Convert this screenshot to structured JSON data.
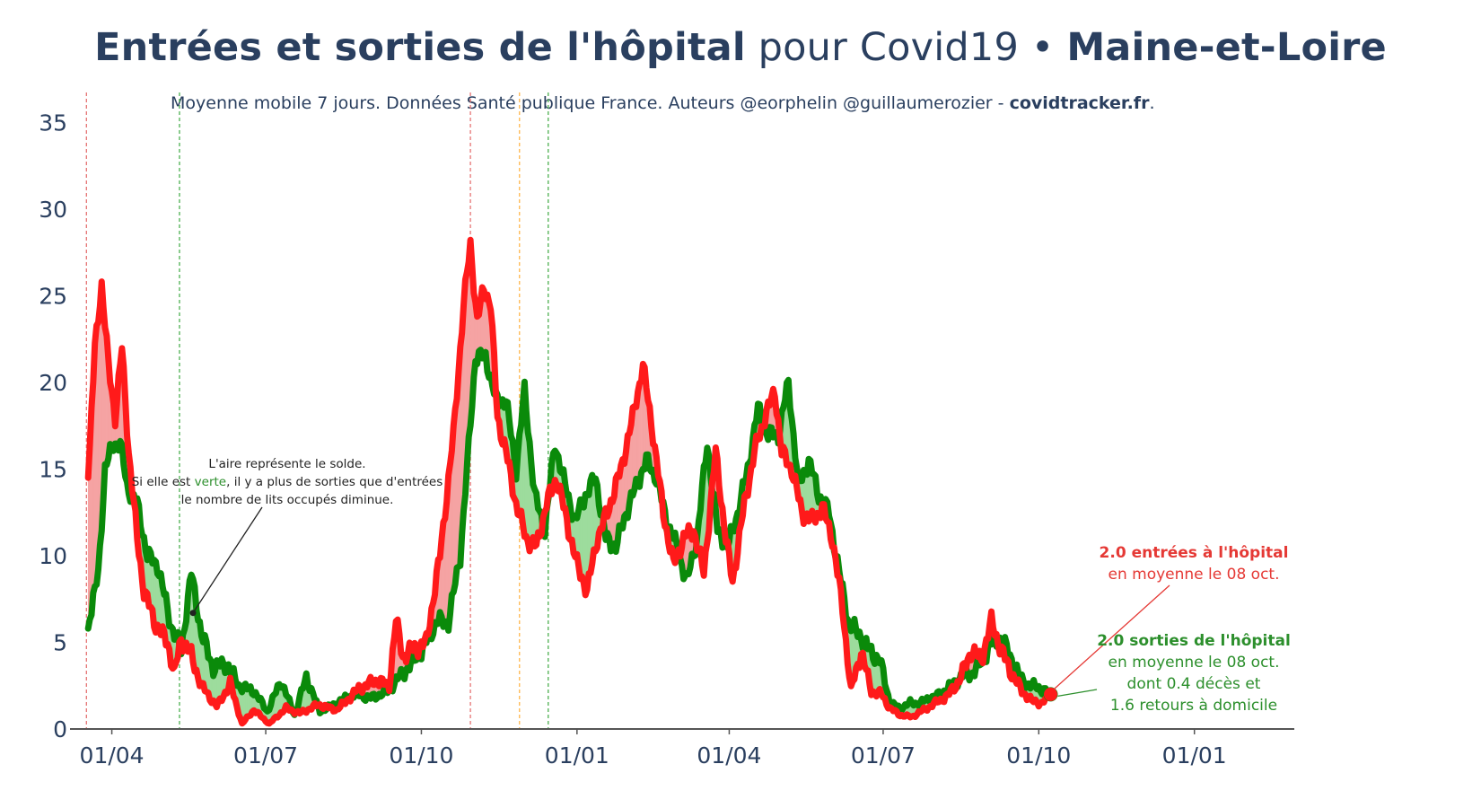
{
  "title": {
    "part1": "Entrées et sorties de l'hôpital",
    "part2": " pour Covid19 • ",
    "part3": "Maine-et-Loire"
  },
  "subtitle": {
    "text": "Moyenne mobile 7 jours. Données Santé publique France. Auteurs @eorphelin @guillaumerozier - ",
    "site": "covidtracker.fr",
    "end": "."
  },
  "note": {
    "line1": "L'aire représente le solde.",
    "line2_before": "Si elle est ",
    "line2_green": "verte",
    "line2_after": ", il y a plus de sorties que d'entrées",
    "line3": "le nombre de lits occupés diminue."
  },
  "annotation_entries": {
    "title": "2.0 entrées à l'hôpital",
    "line2": "en moyenne le 08 oct."
  },
  "annotation_exits": {
    "title": "2.0 sorties de l'hôpital",
    "line2": "en moyenne le 08 oct.",
    "line3": "dont 0.4 décès et",
    "line4": "1.6 retours à domicile"
  },
  "colors": {
    "entries": "#ff1a1a",
    "exits": "#0a8a0a",
    "fill_red": "#f5a3a3",
    "fill_green": "#9ddc9d",
    "text": "#2a3f5f"
  },
  "chart_data": {
    "type": "line",
    "x_start": "2020-03-18",
    "x_end": "2021-10-08",
    "x_tick_labels": [
      "01/04",
      "01/07",
      "01/10",
      "01/01",
      "01/04",
      "01/07",
      "01/10",
      "01/01"
    ],
    "x_tick_dates": [
      "2020-04-01",
      "2020-07-01",
      "2020-10-01",
      "2021-01-01",
      "2021-04-01",
      "2021-07-01",
      "2021-10-01",
      "2022-01-01"
    ],
    "xlim": [
      "2020-03-11",
      "2022-02-28"
    ],
    "ylim": [
      0,
      37
    ],
    "y_ticks": [
      0,
      5,
      10,
      15,
      20,
      25,
      30,
      35
    ],
    "series": [
      {
        "color": "#ff1a1a",
        "knots": [
          [
            "2020-03-18",
            14.5
          ],
          [
            "2020-03-22",
            22
          ],
          [
            "2020-03-26",
            25.7
          ],
          [
            "2020-03-30",
            21
          ],
          [
            "2020-04-03",
            18
          ],
          [
            "2020-04-07",
            22
          ],
          [
            "2020-04-11",
            16
          ],
          [
            "2020-04-16",
            11
          ],
          [
            "2020-04-20",
            8
          ],
          [
            "2020-04-27",
            6
          ],
          [
            "2020-05-04",
            5
          ],
          [
            "2020-05-08",
            3.2
          ],
          [
            "2020-05-12",
            5.2
          ],
          [
            "2020-05-17",
            4.5
          ],
          [
            "2020-05-24",
            2.5
          ],
          [
            "2020-06-02",
            1.3
          ],
          [
            "2020-06-10",
            2.6
          ],
          [
            "2020-06-17",
            0.3
          ],
          [
            "2020-06-24",
            1.1
          ],
          [
            "2020-07-03",
            0.3
          ],
          [
            "2020-07-13",
            1.2
          ],
          [
            "2020-07-21",
            0.9
          ],
          [
            "2020-08-01",
            1.4
          ],
          [
            "2020-08-12",
            1.1
          ],
          [
            "2020-08-26",
            2.4
          ],
          [
            "2020-09-05",
            2.8
          ],
          [
            "2020-09-12",
            2.5
          ],
          [
            "2020-09-16",
            6.3
          ],
          [
            "2020-09-20",
            4.2
          ],
          [
            "2020-09-28",
            4.7
          ],
          [
            "2020-10-04",
            5
          ],
          [
            "2020-10-12",
            10
          ],
          [
            "2020-10-20",
            17
          ],
          [
            "2020-10-26",
            24.5
          ],
          [
            "2020-10-30",
            28
          ],
          [
            "2020-11-03",
            23.5
          ],
          [
            "2020-11-07",
            25.5
          ],
          [
            "2020-11-11",
            24.5
          ],
          [
            "2020-11-15",
            18
          ],
          [
            "2020-11-20",
            16
          ],
          [
            "2020-11-26",
            13
          ],
          [
            "2020-12-02",
            11
          ],
          [
            "2020-12-08",
            10.5
          ],
          [
            "2020-12-14",
            13
          ],
          [
            "2020-12-20",
            14.5
          ],
          [
            "2020-12-26",
            12
          ],
          [
            "2021-01-01",
            9.5
          ],
          [
            "2021-01-07",
            8
          ],
          [
            "2021-01-13",
            11
          ],
          [
            "2021-01-19",
            12.5
          ],
          [
            "2021-01-27",
            15
          ],
          [
            "2021-02-03",
            18
          ],
          [
            "2021-02-09",
            21
          ],
          [
            "2021-02-15",
            17
          ],
          [
            "2021-02-21",
            12.5
          ],
          [
            "2021-02-27",
            9.5
          ],
          [
            "2021-03-05",
            11
          ],
          [
            "2021-03-11",
            11.5
          ],
          [
            "2021-03-17",
            9
          ],
          [
            "2021-03-24",
            16
          ],
          [
            "2021-03-30",
            11
          ],
          [
            "2021-04-03",
            8.5
          ],
          [
            "2021-04-10",
            13
          ],
          [
            "2021-04-16",
            16
          ],
          [
            "2021-04-22",
            18
          ],
          [
            "2021-04-28",
            19.5
          ],
          [
            "2021-05-02",
            16
          ],
          [
            "2021-05-08",
            15
          ],
          [
            "2021-05-14",
            12.5
          ],
          [
            "2021-05-20",
            12
          ],
          [
            "2021-05-26",
            12.8
          ],
          [
            "2021-06-01",
            11
          ],
          [
            "2021-06-07",
            7
          ],
          [
            "2021-06-12",
            2.2
          ],
          [
            "2021-06-18",
            4.5
          ],
          [
            "2021-06-24",
            2.2
          ],
          [
            "2021-06-30",
            2
          ],
          [
            "2021-07-05",
            1.2
          ],
          [
            "2021-07-11",
            0.8
          ],
          [
            "2021-07-18",
            0.7
          ],
          [
            "2021-07-25",
            1.1
          ],
          [
            "2021-08-01",
            1.5
          ],
          [
            "2021-08-08",
            1.9
          ],
          [
            "2021-08-15",
            2.8
          ],
          [
            "2021-08-22",
            4.5
          ],
          [
            "2021-08-28",
            4
          ],
          [
            "2021-09-03",
            6.2
          ],
          [
            "2021-09-09",
            4.5
          ],
          [
            "2021-09-15",
            3.2
          ],
          [
            "2021-09-21",
            2.2
          ],
          [
            "2021-09-27",
            1.6
          ],
          [
            "2021-10-03",
            1.5
          ],
          [
            "2021-10-08",
            2.0
          ]
        ]
      },
      {
        "color": "#0a8a0a",
        "knots": [
          [
            "2020-03-18",
            5.8
          ],
          [
            "2020-03-24",
            9
          ],
          [
            "2020-03-28",
            15
          ],
          [
            "2020-04-02",
            16.5
          ],
          [
            "2020-04-06",
            16.5
          ],
          [
            "2020-04-10",
            14
          ],
          [
            "2020-04-16",
            13
          ],
          [
            "2020-04-22",
            10
          ],
          [
            "2020-04-28",
            9.5
          ],
          [
            "2020-05-06",
            6
          ],
          [
            "2020-05-12",
            4.5
          ],
          [
            "2020-05-18",
            9
          ],
          [
            "2020-05-24",
            5.5
          ],
          [
            "2020-05-31",
            3.5
          ],
          [
            "2020-06-08",
            3.8
          ],
          [
            "2020-06-15",
            2.5
          ],
          [
            "2020-06-24",
            2.2
          ],
          [
            "2020-07-02",
            1
          ],
          [
            "2020-07-10",
            2.8
          ],
          [
            "2020-07-18",
            0.8
          ],
          [
            "2020-07-25",
            3
          ],
          [
            "2020-08-02",
            1
          ],
          [
            "2020-08-12",
            1.5
          ],
          [
            "2020-08-22",
            2
          ],
          [
            "2020-09-01",
            1.8
          ],
          [
            "2020-09-10",
            2.1
          ],
          [
            "2020-09-20",
            3.2
          ],
          [
            "2020-10-01",
            4.5
          ],
          [
            "2020-10-10",
            6.2
          ],
          [
            "2020-10-17",
            6.2
          ],
          [
            "2020-10-24",
            10
          ],
          [
            "2020-10-28",
            15
          ],
          [
            "2020-11-02",
            21.5
          ],
          [
            "2020-11-08",
            21.5
          ],
          [
            "2020-11-14",
            19
          ],
          [
            "2020-11-20",
            19
          ],
          [
            "2020-11-26",
            15
          ],
          [
            "2020-12-01",
            19.5
          ],
          [
            "2020-12-07",
            13.5
          ],
          [
            "2020-12-13",
            11.5
          ],
          [
            "2020-12-19",
            16.5
          ],
          [
            "2020-12-25",
            14
          ],
          [
            "2020-12-31",
            12
          ],
          [
            "2021-01-06",
            13.5
          ],
          [
            "2021-01-12",
            14.5
          ],
          [
            "2021-01-18",
            11
          ],
          [
            "2021-01-24",
            10.5
          ],
          [
            "2021-01-30",
            12.5
          ],
          [
            "2021-02-05",
            14
          ],
          [
            "2021-02-11",
            15.5
          ],
          [
            "2021-02-17",
            14.5
          ],
          [
            "2021-02-23",
            12
          ],
          [
            "2021-03-01",
            10.5
          ],
          [
            "2021-03-07",
            8.5
          ],
          [
            "2021-03-13",
            11
          ],
          [
            "2021-03-19",
            16.5
          ],
          [
            "2021-03-25",
            11.5
          ],
          [
            "2021-03-31",
            10.5
          ],
          [
            "2021-04-06",
            12.5
          ],
          [
            "2021-04-12",
            15
          ],
          [
            "2021-04-18",
            18.5
          ],
          [
            "2021-04-24",
            17
          ],
          [
            "2021-04-30",
            17
          ],
          [
            "2021-05-06",
            20
          ],
          [
            "2021-05-12",
            14
          ],
          [
            "2021-05-18",
            15.5
          ],
          [
            "2021-05-24",
            13.5
          ],
          [
            "2021-05-30",
            12.5
          ],
          [
            "2021-06-05",
            9
          ],
          [
            "2021-06-11",
            6
          ],
          [
            "2021-06-17",
            5.5
          ],
          [
            "2021-06-23",
            4.5
          ],
          [
            "2021-06-29",
            4
          ],
          [
            "2021-07-05",
            1.5
          ],
          [
            "2021-07-11",
            1.2
          ],
          [
            "2021-07-17",
            1.5
          ],
          [
            "2021-07-23",
            1.5
          ],
          [
            "2021-07-29",
            1.8
          ],
          [
            "2021-08-04",
            2
          ],
          [
            "2021-08-10",
            2.5
          ],
          [
            "2021-08-16",
            3
          ],
          [
            "2021-08-22",
            3.2
          ],
          [
            "2021-08-28",
            3.8
          ],
          [
            "2021-09-03",
            5
          ],
          [
            "2021-09-09",
            5.2
          ],
          [
            "2021-09-15",
            4
          ],
          [
            "2021-09-21",
            2.8
          ],
          [
            "2021-09-27",
            2.5
          ],
          [
            "2021-10-03",
            2.3
          ],
          [
            "2021-10-08",
            2.0
          ]
        ]
      }
    ],
    "vertical_lines": [
      {
        "date": "2020-03-17",
        "color": "#e57373"
      },
      {
        "date": "2020-05-11",
        "color": "#4caf50"
      },
      {
        "date": "2020-10-30",
        "color": "#e57373"
      },
      {
        "date": "2020-11-28",
        "color": "#ffb74d"
      },
      {
        "date": "2020-12-15",
        "color": "#4caf50"
      }
    ],
    "last_point": {
      "date": "2021-10-08",
      "value": 2.0
    }
  }
}
